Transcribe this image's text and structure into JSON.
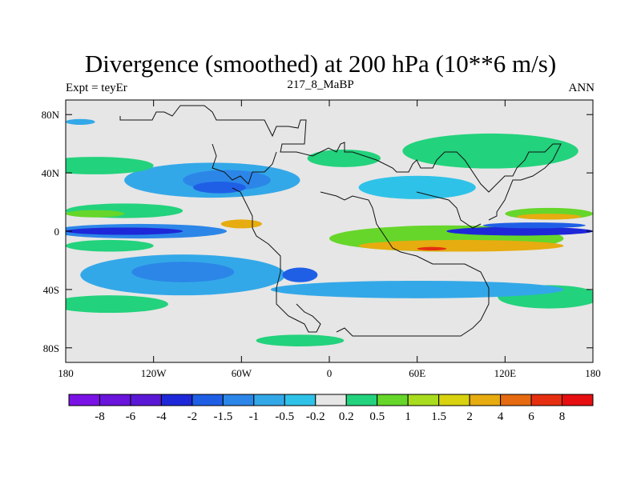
{
  "title": "Divergence (smoothed) at 200 hPa (10**6 m/s)",
  "left_label": "Expt = teyEr",
  "center_label": "217_8_MaBP",
  "right_label": "ANN",
  "axes": {
    "x_ticks": [
      {
        "value": -180,
        "label": "180"
      },
      {
        "value": -120,
        "label": "120W"
      },
      {
        "value": -60,
        "label": "60W"
      },
      {
        "value": 0,
        "label": "0"
      },
      {
        "value": 60,
        "label": "60E"
      },
      {
        "value": 120,
        "label": "120E"
      },
      {
        "value": 180,
        "label": "180"
      }
    ],
    "y_ticks": [
      {
        "value": 80,
        "label": "80N"
      },
      {
        "value": 40,
        "label": "40N"
      },
      {
        "value": 0,
        "label": "0"
      },
      {
        "value": -40,
        "label": "40S"
      },
      {
        "value": -80,
        "label": "80S"
      }
    ],
    "lon_range": [
      -180,
      180
    ],
    "lat_range": [
      -90,
      90
    ]
  },
  "colorbar": {
    "colors": [
      "#7a12e6",
      "#6a14dc",
      "#5a18d6",
      "#1e28d8",
      "#1f5fe6",
      "#2c86e8",
      "#33a8e8",
      "#2fc2e8",
      "#e6e6e6",
      "#23d27c",
      "#66d62a",
      "#a8dc1e",
      "#d8d210",
      "#e6ac10",
      "#e66a10",
      "#e62e10",
      "#e60e10"
    ],
    "labels": [
      "-8",
      "-6",
      "-4",
      "-2",
      "-1.5",
      "-1",
      "-0.5",
      "-0.2",
      "0.2",
      "0.5",
      "1",
      "1.5",
      "2",
      "4",
      "6",
      "8"
    ]
  },
  "palette": {
    "neutral": "#e6e6e6",
    "c_dark_blue": "#1e28d8",
    "c_blue": "#1f5fe6",
    "c_mid_blue": "#2c86e8",
    "c_light_blue": "#33a8e8",
    "c_cyan": "#2fc2e8",
    "c_green": "#23d27c",
    "c_lgreen": "#66d62a",
    "c_yellow": "#d8d210",
    "c_orange": "#e6ac10",
    "c_red": "#e62e10"
  },
  "contour_fields": [
    {
      "name": "field-pacific-n-green",
      "color": "c_green",
      "lon": -140,
      "lat": 14,
      "rx": 40,
      "ry": 5
    },
    {
      "name": "field-pacific-n-yellow",
      "color": "c_lgreen",
      "lon": -160,
      "lat": 12,
      "rx": 20,
      "ry": 2.5
    },
    {
      "name": "field-equator-pacific-blue",
      "color": "c_mid_blue",
      "lon": -130,
      "lat": 0,
      "rx": 60,
      "ry": 5
    },
    {
      "name": "field-equator-pacific-darkblue",
      "color": "c_dark_blue",
      "lon": -140,
      "lat": 0,
      "rx": 40,
      "ry": 2.5
    },
    {
      "name": "field-pacific-s-green",
      "color": "c_green",
      "lon": -150,
      "lat": -10,
      "rx": 30,
      "ry": 4
    },
    {
      "name": "field-n-america-blue",
      "color": "c_light_blue",
      "lon": -80,
      "lat": 35,
      "rx": 60,
      "ry": 12
    },
    {
      "name": "field-n-america-dark",
      "color": "c_mid_blue",
      "lon": -70,
      "lat": 35,
      "rx": 30,
      "ry": 7
    },
    {
      "name": "field-n-america-core",
      "color": "c_blue",
      "lon": -75,
      "lat": 30,
      "rx": 18,
      "ry": 4
    },
    {
      "name": "field-atlantic-s-orange",
      "color": "c_orange",
      "lon": -60,
      "lat": 5,
      "rx": 14,
      "ry": 3
    },
    {
      "name": "field-s-pacific-blue",
      "color": "c_light_blue",
      "lon": -100,
      "lat": -30,
      "rx": 70,
      "ry": 14
    },
    {
      "name": "field-s-pacific-core",
      "color": "c_mid_blue",
      "lon": -100,
      "lat": -28,
      "rx": 35,
      "ry": 7
    },
    {
      "name": "field-s-america-core",
      "color": "c_blue",
      "lon": -20,
      "lat": -30,
      "rx": 12,
      "ry": 5
    },
    {
      "name": "field-africa-green",
      "color": "c_lgreen",
      "lon": 80,
      "lat": -5,
      "rx": 80,
      "ry": 9
    },
    {
      "name": "field-africa-orange",
      "color": "c_orange",
      "lon": 90,
      "lat": -10,
      "rx": 70,
      "ry": 4
    },
    {
      "name": "field-africa-red",
      "color": "c_red",
      "lon": 70,
      "lat": -12,
      "rx": 10,
      "ry": 1.2
    },
    {
      "name": "field-indian-darkblue",
      "color": "c_dark_blue",
      "lon": 130,
      "lat": 0,
      "rx": 50,
      "ry": 3
    },
    {
      "name": "field-indian-blue",
      "color": "c_blue",
      "lon": 140,
      "lat": 4,
      "rx": 35,
      "ry": 2
    },
    {
      "name": "field-indo-green",
      "color": "c_lgreen",
      "lon": 150,
      "lat": 12,
      "rx": 30,
      "ry": 4
    },
    {
      "name": "field-indo-orange",
      "color": "c_orange",
      "lon": 150,
      "lat": 10,
      "rx": 22,
      "ry": 2
    },
    {
      "name": "field-asia-green",
      "color": "c_green",
      "lon": 110,
      "lat": 55,
      "rx": 60,
      "ry": 12
    },
    {
      "name": "field-asia-blue",
      "color": "c_cyan",
      "lon": 60,
      "lat": 30,
      "rx": 40,
      "ry": 8
    },
    {
      "name": "field-europe-green",
      "color": "c_green",
      "lon": 10,
      "lat": 50,
      "rx": 25,
      "ry": 6
    },
    {
      "name": "field-s-indian-green",
      "color": "c_green",
      "lon": 150,
      "lat": -45,
      "rx": 35,
      "ry": 8
    },
    {
      "name": "field-s-ocean-blue",
      "color": "c_light_blue",
      "lon": 60,
      "lat": -40,
      "rx": 100,
      "ry": 6
    },
    {
      "name": "field-s-ocean-lgreen",
      "color": "c_green",
      "lon": -150,
      "lat": -50,
      "rx": 40,
      "ry": 6
    },
    {
      "name": "field-antarctic-green",
      "color": "c_green",
      "lon": -20,
      "lat": -75,
      "rx": 30,
      "ry": 4
    },
    {
      "name": "field-n-pacific-green",
      "color": "c_green",
      "lon": -160,
      "lat": 45,
      "rx": 40,
      "ry": 6
    },
    {
      "name": "field-north-blue",
      "color": "c_light_blue",
      "lon": -170,
      "lat": 75,
      "rx": 10,
      "ry": 2
    }
  ]
}
